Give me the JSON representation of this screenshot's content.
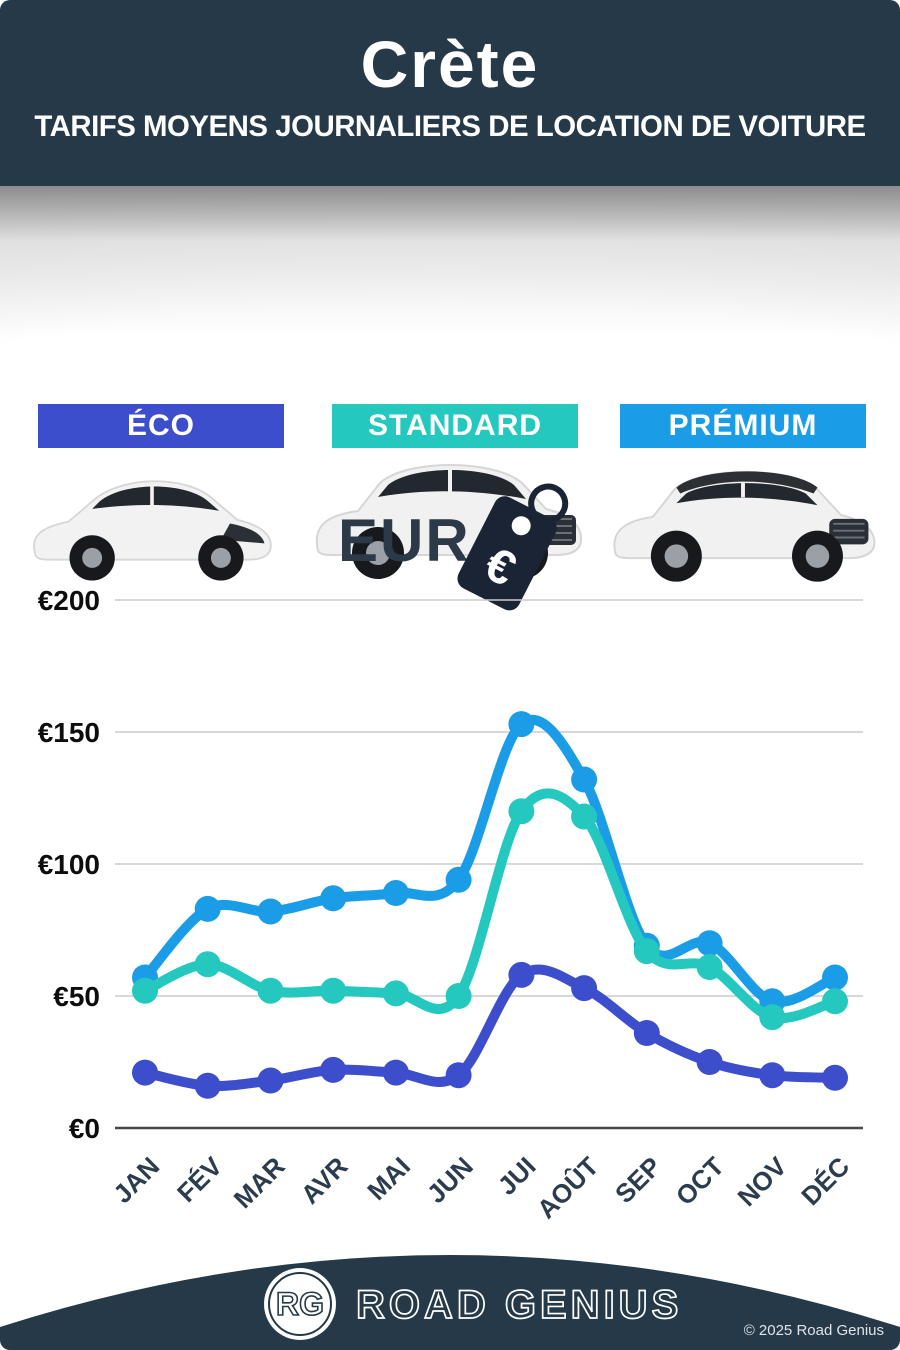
{
  "header": {
    "title": "Crète",
    "subtitle": "TARIFS MOYENS JOURNALIERS DE LOCATION DE VOITURE"
  },
  "categories": [
    {
      "id": "eco",
      "label": "ÉCO",
      "color": "#3c4ecb"
    },
    {
      "id": "standard",
      "label": "STANDARD",
      "color": "#24c8be"
    },
    {
      "id": "premium",
      "label": "PRÉMIUM",
      "color": "#1b9ce6"
    }
  ],
  "currency": {
    "label": "EUR",
    "symbol": "€",
    "icon": "euro-price-tag-icon"
  },
  "chart_data": {
    "type": "line",
    "title": "Tarifs moyens journaliers de location de voiture - Crète (EUR)",
    "categories": [
      "JAN",
      "FÉV",
      "MAR",
      "AVR",
      "MAI",
      "JUN",
      "JUI",
      "AOÛT",
      "SEP",
      "OCT",
      "NOV",
      "DÉC"
    ],
    "series": [
      {
        "name": "PRÉMIUM",
        "color": "#1b9ce6",
        "values": [
          57,
          83,
          82,
          87,
          89,
          94,
          153,
          132,
          69,
          70,
          48,
          57
        ]
      },
      {
        "name": "STANDARD",
        "color": "#24c8be",
        "values": [
          52,
          62,
          52,
          52,
          51,
          50,
          120,
          118,
          67,
          61,
          42,
          48
        ]
      },
      {
        "name": "ÉCO",
        "color": "#3c4ecb",
        "values": [
          21,
          16,
          18,
          22,
          21,
          20,
          58,
          53,
          36,
          25,
          20,
          19
        ]
      }
    ],
    "yticks": [
      0,
      50,
      100,
      150,
      200
    ],
    "ytick_labels": [
      "€0",
      "€50",
      "€100",
      "€150",
      "€200"
    ],
    "ylim": [
      0,
      200
    ],
    "grid": true,
    "legend_position": "none"
  },
  "footer": {
    "logo_initials": "RG",
    "brand": "ROAD GENIUS",
    "copyright": "© 2025 Road Genius"
  },
  "colors": {
    "header_bg": "#253949",
    "gridline": "#cccccc",
    "baseline": "#474747",
    "axis_text": "#0d0d0d",
    "month_text": "#2b3c4e",
    "tag": "#1a2434"
  }
}
